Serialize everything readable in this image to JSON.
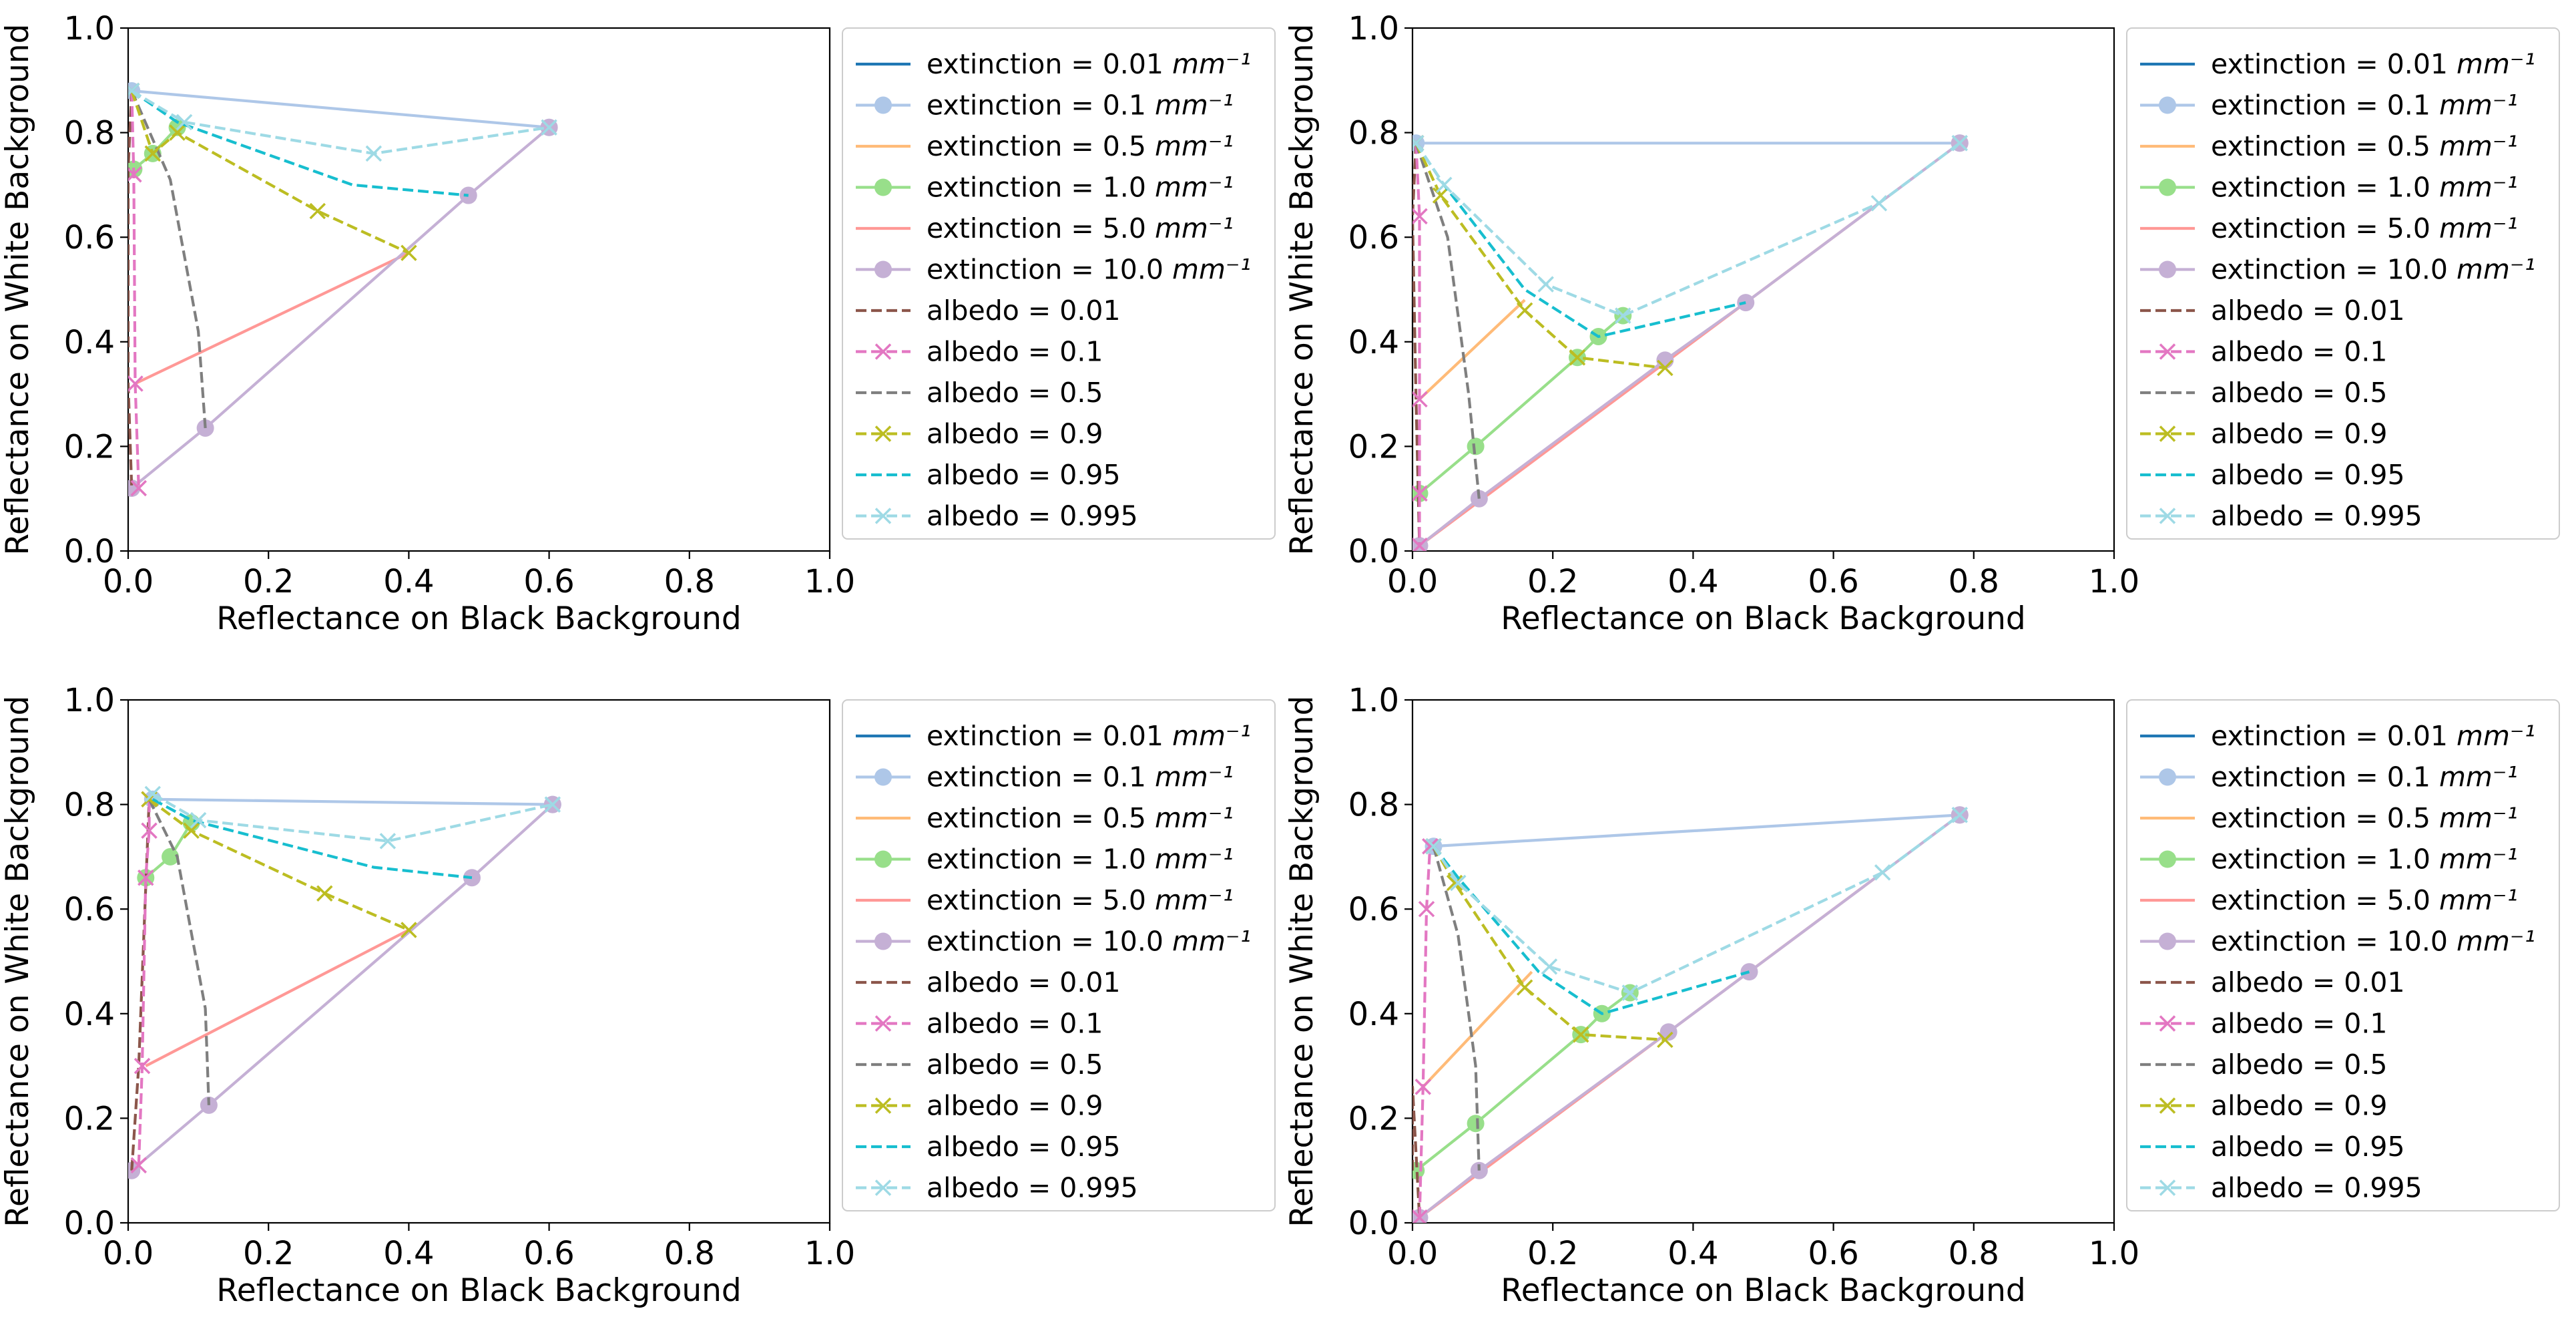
{
  "chart_data": [
    {
      "type": "line",
      "title": "",
      "xlabel": "Reflectance on Black Background",
      "ylabel": "Reflectance on White Background",
      "xlim": [
        0,
        1
      ],
      "ylim": [
        0,
        1
      ],
      "xticks": [
        "0.0",
        "0.2",
        "0.4",
        "0.6",
        "0.8",
        "1.0"
      ],
      "yticks": [
        "0.0",
        "0.2",
        "0.4",
        "0.6",
        "0.8",
        "1.0"
      ],
      "grid": false,
      "legend_position": "outside right",
      "series": [
        {
          "name": "extinction = 0.01",
          "unit": "mm⁻¹",
          "group": "extinction",
          "color": "#1f77b4",
          "dash": "",
          "marker": "",
          "x": [],
          "y": []
        },
        {
          "name": "extinction = 0.1",
          "unit": "mm⁻¹",
          "group": "extinction",
          "color": "#aec7e8",
          "dash": "",
          "marker": "o",
          "x": [
            0.005,
            0.6
          ],
          "y": [
            0.88,
            0.81
          ]
        },
        {
          "name": "extinction = 0.5",
          "unit": "mm⁻¹",
          "group": "extinction",
          "color": "#ffbb78",
          "dash": "",
          "marker": "",
          "x": [],
          "y": []
        },
        {
          "name": "extinction = 1.0",
          "unit": "mm⁻¹",
          "group": "extinction",
          "color": "#98df8a",
          "dash": "",
          "marker": "o",
          "x": [
            0.008,
            0.035,
            0.07
          ],
          "y": [
            0.73,
            0.76,
            0.81
          ]
        },
        {
          "name": "extinction = 5.0",
          "unit": "mm⁻¹",
          "group": "extinction",
          "color": "#ff9896",
          "dash": "",
          "marker": "",
          "x": [
            0.01,
            0.4
          ],
          "y": [
            0.32,
            0.57
          ]
        },
        {
          "name": "extinction = 10.0",
          "unit": "mm⁻¹",
          "group": "extinction",
          "color": "#c5b0d5",
          "dash": "",
          "marker": "o",
          "x": [
            0.005,
            0.11,
            0.485,
            0.6
          ],
          "y": [
            0.12,
            0.235,
            0.68,
            0.81
          ]
        },
        {
          "name": "albedo = 0.01",
          "unit": "",
          "group": "albedo",
          "color": "#8c564b",
          "dash": "16,7",
          "marker": "",
          "x": [
            0.005,
            0.0,
            0.0,
            0.005
          ],
          "y": [
            0.88,
            0.73,
            0.32,
            0.12
          ]
        },
        {
          "name": "albedo = 0.1",
          "unit": "",
          "group": "albedo",
          "color": "#e377c2",
          "dash": "16,7",
          "marker": "x",
          "x": [
            0.005,
            0.008,
            0.01,
            0.015
          ],
          "y": [
            0.88,
            0.72,
            0.32,
            0.12
          ]
        },
        {
          "name": "albedo = 0.5",
          "unit": "",
          "group": "albedo",
          "color": "#7f7f7f",
          "dash": "16,7",
          "marker": "",
          "x": [
            0.005,
            0.06,
            0.1,
            0.11
          ],
          "y": [
            0.88,
            0.71,
            0.42,
            0.235
          ]
        },
        {
          "name": "albedo = 0.9",
          "unit": "",
          "group": "albedo",
          "color": "#bcbd22",
          "dash": "16,7",
          "marker": "x",
          "x": [
            0.005,
            0.035,
            0.07,
            0.27,
            0.4
          ],
          "y": [
            0.88,
            0.76,
            0.8,
            0.65,
            0.57
          ]
        },
        {
          "name": "albedo = 0.95",
          "unit": "",
          "group": "albedo",
          "color": "#17becf",
          "dash": "16,7",
          "marker": "",
          "x": [
            0.005,
            0.07,
            0.32,
            0.485
          ],
          "y": [
            0.88,
            0.82,
            0.7,
            0.68
          ]
        },
        {
          "name": "albedo = 0.995",
          "unit": "",
          "group": "albedo",
          "color": "#9edae5",
          "dash": "16,7",
          "marker": "x",
          "x": [
            0.005,
            0.08,
            0.35,
            0.6
          ],
          "y": [
            0.88,
            0.82,
            0.76,
            0.81
          ]
        }
      ]
    },
    {
      "type": "line",
      "title": "",
      "xlabel": "Reflectance on Black Background",
      "ylabel": "Reflectance on White Background",
      "xlim": [
        0,
        1
      ],
      "ylim": [
        0,
        1
      ],
      "xticks": [
        "0.0",
        "0.2",
        "0.4",
        "0.6",
        "0.8",
        "1.0"
      ],
      "yticks": [
        "0.0",
        "0.2",
        "0.4",
        "0.6",
        "0.8",
        "1.0"
      ],
      "grid": false,
      "legend_position": "outside right",
      "series": [
        {
          "name": "extinction = 0.01",
          "unit": "mm⁻¹",
          "group": "extinction",
          "color": "#1f77b4",
          "dash": "",
          "marker": "",
          "x": [],
          "y": []
        },
        {
          "name": "extinction = 0.1",
          "unit": "mm⁻¹",
          "group": "extinction",
          "color": "#aec7e8",
          "dash": "",
          "marker": "o",
          "x": [
            0.005,
            0.78
          ],
          "y": [
            0.78,
            0.78
          ]
        },
        {
          "name": "extinction = 0.5",
          "unit": "mm⁻¹",
          "group": "extinction",
          "color": "#ffbb78",
          "dash": "",
          "marker": "",
          "x": [
            0.01,
            0.16
          ],
          "y": [
            0.29,
            0.48
          ]
        },
        {
          "name": "extinction = 1.0",
          "unit": "mm⁻¹",
          "group": "extinction",
          "color": "#98df8a",
          "dash": "",
          "marker": "o",
          "x": [
            0.01,
            0.09,
            0.235,
            0.265,
            0.3
          ],
          "y": [
            0.11,
            0.2,
            0.37,
            0.41,
            0.45
          ]
        },
        {
          "name": "extinction = 5.0",
          "unit": "mm⁻¹",
          "group": "extinction",
          "color": "#ff9896",
          "dash": "",
          "marker": "",
          "x": [
            0.01,
            0.665
          ],
          "y": [
            0.01,
            0.665
          ]
        },
        {
          "name": "extinction = 10.0",
          "unit": "mm⁻¹",
          "group": "extinction",
          "color": "#c5b0d5",
          "dash": "",
          "marker": "o",
          "x": [
            0.01,
            0.095,
            0.36,
            0.475,
            0.78
          ],
          "y": [
            0.01,
            0.1,
            0.365,
            0.475,
            0.78
          ]
        },
        {
          "name": "albedo = 0.01",
          "unit": "",
          "group": "albedo",
          "color": "#8c564b",
          "dash": "16,7",
          "marker": "",
          "x": [
            0.005,
            0.0,
            0.005,
            0.01
          ],
          "y": [
            0.78,
            0.64,
            0.29,
            0.01
          ]
        },
        {
          "name": "albedo = 0.1",
          "unit": "",
          "group": "albedo",
          "color": "#e377c2",
          "dash": "16,7",
          "marker": "x",
          "x": [
            0.005,
            0.01,
            0.01,
            0.01,
            0.01
          ],
          "y": [
            0.78,
            0.64,
            0.29,
            0.11,
            0.01
          ]
        },
        {
          "name": "albedo = 0.5",
          "unit": "",
          "group": "albedo",
          "color": "#7f7f7f",
          "dash": "16,7",
          "marker": "",
          "x": [
            0.005,
            0.05,
            0.08,
            0.095
          ],
          "y": [
            0.78,
            0.6,
            0.3,
            0.1
          ]
        },
        {
          "name": "albedo = 0.9",
          "unit": "",
          "group": "albedo",
          "color": "#bcbd22",
          "dash": "16,7",
          "marker": "x",
          "x": [
            0.005,
            0.04,
            0.16,
            0.235,
            0.36
          ],
          "y": [
            0.78,
            0.68,
            0.46,
            0.37,
            0.35
          ]
        },
        {
          "name": "albedo = 0.95",
          "unit": "",
          "group": "albedo",
          "color": "#17becf",
          "dash": "16,7",
          "marker": "",
          "x": [
            0.005,
            0.045,
            0.16,
            0.265,
            0.475
          ],
          "y": [
            0.78,
            0.7,
            0.5,
            0.41,
            0.475
          ]
        },
        {
          "name": "albedo = 0.995",
          "unit": "",
          "group": "albedo",
          "color": "#9edae5",
          "dash": "16,7",
          "marker": "x",
          "x": [
            0.005,
            0.045,
            0.19,
            0.3,
            0.665,
            0.78
          ],
          "y": [
            0.78,
            0.7,
            0.51,
            0.45,
            0.665,
            0.78
          ]
        }
      ]
    },
    {
      "type": "line",
      "title": "",
      "xlabel": "Reflectance on Black Background",
      "ylabel": "Reflectance on White Background",
      "xlim": [
        0,
        1
      ],
      "ylim": [
        0,
        1
      ],
      "xticks": [
        "0.0",
        "0.2",
        "0.4",
        "0.6",
        "0.8",
        "1.0"
      ],
      "yticks": [
        "0.0",
        "0.2",
        "0.4",
        "0.6",
        "0.8",
        "1.0"
      ],
      "grid": false,
      "legend_position": "outside right",
      "series": [
        {
          "name": "extinction = 0.01",
          "unit": "mm⁻¹",
          "group": "extinction",
          "color": "#1f77b4",
          "dash": "",
          "marker": "",
          "x": [],
          "y": []
        },
        {
          "name": "extinction = 0.1",
          "unit": "mm⁻¹",
          "group": "extinction",
          "color": "#aec7e8",
          "dash": "",
          "marker": "o",
          "x": [
            0.035,
            0.605
          ],
          "y": [
            0.81,
            0.8
          ]
        },
        {
          "name": "extinction = 0.5",
          "unit": "mm⁻¹",
          "group": "extinction",
          "color": "#ffbb78",
          "dash": "",
          "marker": "",
          "x": [],
          "y": []
        },
        {
          "name": "extinction = 1.0",
          "unit": "mm⁻¹",
          "group": "extinction",
          "color": "#98df8a",
          "dash": "",
          "marker": "o",
          "x": [
            0.025,
            0.06,
            0.09
          ],
          "y": [
            0.66,
            0.7,
            0.765
          ]
        },
        {
          "name": "extinction = 5.0",
          "unit": "mm⁻¹",
          "group": "extinction",
          "color": "#ff9896",
          "dash": "",
          "marker": "",
          "x": [
            0.025,
            0.4
          ],
          "y": [
            0.3,
            0.56
          ]
        },
        {
          "name": "extinction = 10.0",
          "unit": "mm⁻¹",
          "group": "extinction",
          "color": "#c5b0d5",
          "dash": "",
          "marker": "o",
          "x": [
            0.005,
            0.115,
            0.49,
            0.605
          ],
          "y": [
            0.1,
            0.225,
            0.66,
            0.8
          ]
        },
        {
          "name": "albedo = 0.01",
          "unit": "",
          "group": "albedo",
          "color": "#8c564b",
          "dash": "16,7",
          "marker": "",
          "x": [
            0.005,
            0.015,
            0.03
          ],
          "y": [
            0.1,
            0.3,
            0.81
          ]
        },
        {
          "name": "albedo = 0.1",
          "unit": "",
          "group": "albedo",
          "color": "#e377c2",
          "dash": "16,7",
          "marker": "x",
          "x": [
            0.015,
            0.02,
            0.025,
            0.03,
            0.03
          ],
          "y": [
            0.11,
            0.3,
            0.66,
            0.75,
            0.81
          ]
        },
        {
          "name": "albedo = 0.5",
          "unit": "",
          "group": "albedo",
          "color": "#7f7f7f",
          "dash": "16,7",
          "marker": "",
          "x": [
            0.03,
            0.07,
            0.11,
            0.115
          ],
          "y": [
            0.81,
            0.7,
            0.41,
            0.225
          ]
        },
        {
          "name": "albedo = 0.9",
          "unit": "",
          "group": "albedo",
          "color": "#bcbd22",
          "dash": "16,7",
          "marker": "x",
          "x": [
            0.03,
            0.09,
            0.28,
            0.4
          ],
          "y": [
            0.81,
            0.75,
            0.63,
            0.56
          ]
        },
        {
          "name": "albedo = 0.95",
          "unit": "",
          "group": "albedo",
          "color": "#17becf",
          "dash": "16,7",
          "marker": "",
          "x": [
            0.035,
            0.09,
            0.35,
            0.49
          ],
          "y": [
            0.81,
            0.77,
            0.68,
            0.66
          ]
        },
        {
          "name": "albedo = 0.995",
          "unit": "",
          "group": "albedo",
          "color": "#9edae5",
          "dash": "16,7",
          "marker": "x",
          "x": [
            0.035,
            0.1,
            0.37,
            0.605
          ],
          "y": [
            0.82,
            0.77,
            0.73,
            0.8
          ]
        }
      ]
    },
    {
      "type": "line",
      "title": "",
      "xlabel": "Reflectance on Black Background",
      "ylabel": "Reflectance on White Background",
      "xlim": [
        0,
        1
      ],
      "ylim": [
        0,
        1
      ],
      "xticks": [
        "0.0",
        "0.2",
        "0.4",
        "0.6",
        "0.8",
        "1.0"
      ],
      "yticks": [
        "0.0",
        "0.2",
        "0.4",
        "0.6",
        "0.8",
        "1.0"
      ],
      "grid": false,
      "legend_position": "outside right",
      "series": [
        {
          "name": "extinction = 0.01",
          "unit": "mm⁻¹",
          "group": "extinction",
          "color": "#1f77b4",
          "dash": "",
          "marker": "",
          "x": [],
          "y": []
        },
        {
          "name": "extinction = 0.1",
          "unit": "mm⁻¹",
          "group": "extinction",
          "color": "#aec7e8",
          "dash": "",
          "marker": "o",
          "x": [
            0.03,
            0.78
          ],
          "y": [
            0.72,
            0.78
          ]
        },
        {
          "name": "extinction = 0.5",
          "unit": "mm⁻¹",
          "group": "extinction",
          "color": "#ffbb78",
          "dash": "",
          "marker": "",
          "x": [
            0.015,
            0.17
          ],
          "y": [
            0.26,
            0.48
          ]
        },
        {
          "name": "extinction = 1.0",
          "unit": "mm⁻¹",
          "group": "extinction",
          "color": "#98df8a",
          "dash": "",
          "marker": "o",
          "x": [
            0.005,
            0.09,
            0.24,
            0.27,
            0.31
          ],
          "y": [
            0.1,
            0.19,
            0.36,
            0.4,
            0.44
          ]
        },
        {
          "name": "extinction = 5.0",
          "unit": "mm⁻¹",
          "group": "extinction",
          "color": "#ff9896",
          "dash": "",
          "marker": "",
          "x": [
            0.01,
            0.67
          ],
          "y": [
            0.01,
            0.67
          ]
        },
        {
          "name": "extinction = 10.0",
          "unit": "mm⁻¹",
          "group": "extinction",
          "color": "#c5b0d5",
          "dash": "",
          "marker": "o",
          "x": [
            0.01,
            0.095,
            0.365,
            0.48,
            0.78
          ],
          "y": [
            0.01,
            0.1,
            0.365,
            0.48,
            0.78
          ]
        },
        {
          "name": "albedo = 0.01",
          "unit": "",
          "group": "albedo",
          "color": "#8c564b",
          "dash": "16,7",
          "marker": "",
          "x": [
            0.0,
            0.0,
            0.01
          ],
          "y": [
            0.1,
            0.26,
            0.01
          ]
        },
        {
          "name": "albedo = 0.1",
          "unit": "",
          "group": "albedo",
          "color": "#e377c2",
          "dash": "16,7",
          "marker": "x",
          "x": [
            0.01,
            0.015,
            0.02,
            0.025,
            0.03
          ],
          "y": [
            0.01,
            0.26,
            0.6,
            0.72,
            0.72
          ]
        },
        {
          "name": "albedo = 0.5",
          "unit": "",
          "group": "albedo",
          "color": "#7f7f7f",
          "dash": "16,7",
          "marker": "",
          "x": [
            0.03,
            0.065,
            0.09,
            0.095
          ],
          "y": [
            0.72,
            0.55,
            0.3,
            0.1
          ]
        },
        {
          "name": "albedo = 0.9",
          "unit": "",
          "group": "albedo",
          "color": "#bcbd22",
          "dash": "16,7",
          "marker": "x",
          "x": [
            0.03,
            0.06,
            0.16,
            0.24,
            0.36
          ],
          "y": [
            0.72,
            0.65,
            0.45,
            0.36,
            0.35
          ]
        },
        {
          "name": "albedo = 0.95",
          "unit": "",
          "group": "albedo",
          "color": "#17becf",
          "dash": "16,7",
          "marker": "",
          "x": [
            0.03,
            0.065,
            0.18,
            0.27,
            0.48
          ],
          "y": [
            0.72,
            0.66,
            0.48,
            0.4,
            0.48
          ]
        },
        {
          "name": "albedo = 0.995",
          "unit": "",
          "group": "albedo",
          "color": "#9edae5",
          "dash": "16,7",
          "marker": "x",
          "x": [
            0.03,
            0.065,
            0.195,
            0.31,
            0.67,
            0.78
          ],
          "y": [
            0.72,
            0.65,
            0.49,
            0.44,
            0.67,
            0.78
          ]
        }
      ]
    }
  ]
}
